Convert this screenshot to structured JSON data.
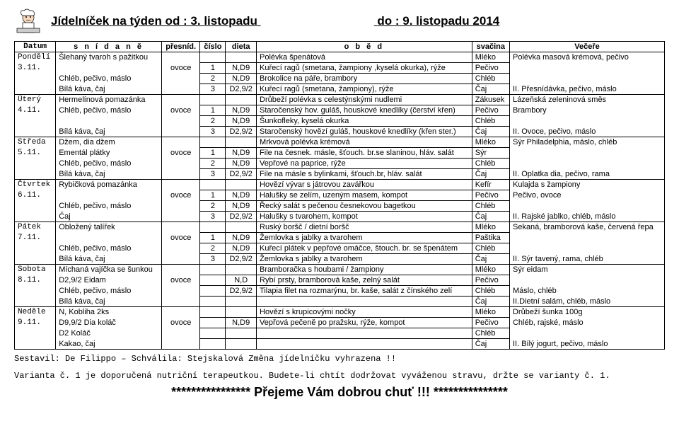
{
  "title_left": "Jídelníček na týden od : 3. listopadu",
  "title_right": "do : 9. listopadu 2014",
  "columns": {
    "datum": "Datum",
    "snidane": "s n í d a n ě",
    "presnid": "přesníd.",
    "cislo": "číslo",
    "dieta": "dieta",
    "obed": "o b ě d",
    "svacina": "svačina",
    "vecere": "Večeře"
  },
  "rows": [
    {
      "datum": "Pondělí",
      "snidane": "Šlehaný tvaroh s pažitkou",
      "presnid": "",
      "cislo": "",
      "dieta": "",
      "obed": "Polévka špenátová",
      "svacina": "Mléko",
      "vecere": "Polévka masová krémová, pečivo"
    },
    {
      "datum": "3.11.",
      "snidane": "",
      "presnid": "ovoce",
      "cislo": "1",
      "dieta": "N,D9",
      "obed": "Kuřecí ragů (smetana, žampiony ,kyselá okurka), rýže",
      "svacina": "Pečivo",
      "vecere": ""
    },
    {
      "datum": "",
      "snidane": "Chléb, pečivo, máslo",
      "presnid": "",
      "cislo": "2",
      "dieta": "N,D9",
      "obed": "Brokolice na páře, brambory",
      "svacina": "Chléb",
      "vecere": ""
    },
    {
      "datum": "",
      "snidane": "Bílá káva, čaj",
      "presnid": "",
      "cislo": "3",
      "dieta": "D2,9/2",
      "obed": "Kuřecí ragů (smetana, žampiony), rýže",
      "svacina": "Čaj",
      "vecere": "II. Přesnídávka, pečivo, máslo"
    },
    {
      "datum": "Úterý",
      "snidane": "Hermelínová pomazánka",
      "presnid": "",
      "cislo": "",
      "dieta": "",
      "obed": "Drůbeží polévka s celestýnskými nudlemi",
      "svacina": "Zákusek",
      "vecere": "Lázeňská zeleninová směs"
    },
    {
      "datum": "4.11.",
      "snidane": "Chléb, pečivo, máslo",
      "presnid": "ovoce",
      "cislo": "1",
      "dieta": "N,D9",
      "obed": "Staročenský hov. guláš, houskové knedlíky (čerství křen)",
      "svacina": "Pečivo",
      "vecere": "Brambory"
    },
    {
      "datum": "",
      "snidane": "",
      "presnid": "",
      "cislo": "2",
      "dieta": "N,D9",
      "obed": "Šunkofleky, kyselá okurka",
      "svacina": "Chléb",
      "vecere": ""
    },
    {
      "datum": "",
      "snidane": "Bílá káva, čaj",
      "presnid": "",
      "cislo": "3",
      "dieta": "D2,9/2",
      "obed": "Staročenský hovězí guláš, houskové knedlíky (křen ster.)",
      "svacina": "Čaj",
      "vecere": "II. Ovoce, pečivo, máslo"
    },
    {
      "datum": "Středa",
      "snidane": "Džem, dia džem",
      "presnid": "",
      "cislo": "",
      "dieta": "",
      "obed": "Mrkvová polévka krémová",
      "svacina": "Mléko",
      "vecere": "Sýr Philadelphia, máslo, chléb"
    },
    {
      "datum": "5.11.",
      "snidane": "Ementál plátky",
      "presnid": "ovoce",
      "cislo": "1",
      "dieta": "N,D9",
      "obed": "File na česnek. másle, šťouch. br.se slaninou, hláv. salát",
      "svacina": "Sýr",
      "vecere": ""
    },
    {
      "datum": "",
      "snidane": "Chléb, pečivo, máslo",
      "presnid": "",
      "cislo": "2",
      "dieta": "N,D9",
      "obed": "Vepřové na paprice, rýže",
      "svacina": "Chléb",
      "vecere": ""
    },
    {
      "datum": "",
      "snidane": "Bílá káva, čaj",
      "presnid": "",
      "cislo": "3",
      "dieta": "D2,9/2",
      "obed": "File na másle s bylinkami, šťouch.br, hláv. salát",
      "svacina": "Čaj",
      "vecere": "II. Oplatka dia, pečivo, rama"
    },
    {
      "datum": "Čtvrtek",
      "snidane": "Rybičková pomazánka",
      "presnid": "",
      "cislo": "",
      "dieta": "",
      "obed": "Hovězí vývar s játrovou zavářkou",
      "svacina": "Kefír",
      "vecere": "Kulajda s žampiony"
    },
    {
      "datum": "6.11.",
      "snidane": "",
      "presnid": "ovoce",
      "cislo": "1",
      "dieta": "N,D9",
      "obed": "Halušky se zelím, uzeným masem, kompot",
      "svacina": "Pečivo",
      "vecere": "Pečivo, ovoce"
    },
    {
      "datum": "",
      "snidane": "Chléb, pečivo, máslo",
      "presnid": "",
      "cislo": "2",
      "dieta": "N,D9",
      "obed": "Řecký salát s pečenou česnekovou bagetkou",
      "svacina": "Chléb",
      "vecere": ""
    },
    {
      "datum": "",
      "snidane": "Čaj",
      "presnid": "",
      "cislo": "3",
      "dieta": "D2,9/2",
      "obed": "Halušky s tvarohem, kompot",
      "svacina": "Čaj",
      "vecere": "II. Rajské jablko, chléb, máslo"
    },
    {
      "datum": "Pátek",
      "snidane": "Obložený talířek",
      "presnid": "",
      "cislo": "",
      "dieta": "",
      "obed": "Ruský boršč / dietní boršč",
      "svacina": "Mléko",
      "vecere": "Sekaná, bramborová kaše, červená řepa"
    },
    {
      "datum": "7.11.",
      "snidane": "",
      "presnid": "ovoce",
      "cislo": "1",
      "dieta": "N,D9",
      "obed": "Žemlovka s jablky a tvarohem",
      "svacina": "Paštika",
      "vecere": ""
    },
    {
      "datum": "",
      "snidane": "Chléb, pečivo, máslo",
      "presnid": "",
      "cislo": "2",
      "dieta": "N,D9",
      "obed": "Kuřecí plátek v pepřové omáčce, štouch. br. se špenátem",
      "svacina": "Chléb",
      "vecere": ""
    },
    {
      "datum": "",
      "snidane": "Bílá káva, čaj",
      "presnid": "",
      "cislo": "3",
      "dieta": "D2,9/2",
      "obed": "Žemlovka s jablky a tvarohem",
      "svacina": "Čaj",
      "vecere": "II. Sýr tavený, rama, chléb"
    },
    {
      "datum": "Sobota",
      "snidane": "Míchaná vajíčka se šunkou",
      "presnid": "",
      "cislo": "",
      "dieta": "",
      "obed": "Bramboračka s houbami / žampiony",
      "svacina": "Mléko",
      "vecere": "Sýr eidam"
    },
    {
      "datum": "8.11.",
      "snidane": "D2,9/2 Eidam",
      "presnid": "ovoce",
      "cislo": "",
      "dieta": "N,D",
      "obed": "Rybí prsty, bramborová kaše, zelný salát",
      "svacina": "Pečivo",
      "vecere": ""
    },
    {
      "datum": "",
      "snidane": "Chléb, pečivo, máslo",
      "presnid": "",
      "cislo": "",
      "dieta": "D2,9/2",
      "obed": "Tilapia filet na rozmarýnu, br. kaše, salát z čínského zelí",
      "svacina": "Chléb",
      "vecere": "Máslo, chléb"
    },
    {
      "datum": "",
      "snidane": "Bílá káva, čaj",
      "presnid": "",
      "cislo": "",
      "dieta": "",
      "obed": "",
      "svacina": "Čaj",
      "vecere": "II.Dietní salám, chléb, máslo"
    },
    {
      "datum": "Neděle",
      "snidane": "N, Kobliha 2ks",
      "presnid": "",
      "cislo": "",
      "dieta": "",
      "obed": "Hovězí s krupicovými nočky",
      "svacina": "Mléko",
      "vecere": "Drůbeží šunka 100g"
    },
    {
      "datum": "9.11.",
      "snidane": "D9,9/2 Dia koláč",
      "presnid": "ovoce",
      "cislo": "",
      "dieta": "N,D9",
      "obed": "Vepřová pečeně po pražsku, rýže, kompot",
      "svacina": "Pečivo",
      "vecere": "Chléb, rajské, máslo"
    },
    {
      "datum": "",
      "snidane": "D2 Koláč",
      "presnid": "",
      "cislo": "",
      "dieta": "",
      "obed": "",
      "svacina": "Chléb",
      "vecere": ""
    },
    {
      "datum": "",
      "snidane": "Kakao, čaj",
      "presnid": "",
      "cislo": "",
      "dieta": "",
      "obed": "",
      "svacina": "Čaj",
      "vecere": "II. Bílý jogurt, pečivo, máslo"
    }
  ],
  "footer_compiled": "Sestavil: De Filippo – Schválila: Stejskalová       Změna  jídelníčku  vyhrazena !!",
  "variant_note": "Varianta č. 1 je doporučená nutriční terapeutkou. Budete-li chtít dodržovat vyváženou stravu, držte se varianty č. 1.",
  "wish_left": "****************",
  "wish_mid": "Přejeme Vám dobrou chuť !!!",
  "wish_right": "***************",
  "day_block_size": 4
}
